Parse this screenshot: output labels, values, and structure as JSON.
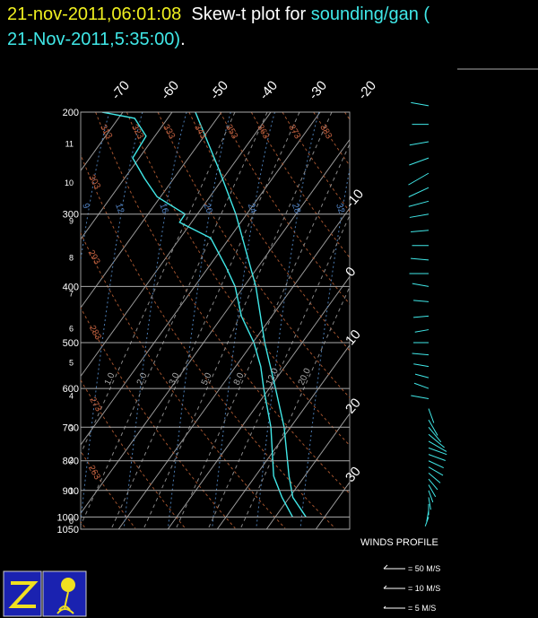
{
  "header": {
    "time": "21-nov-2011,06:01:08",
    "plot": "Skew-t plot for",
    "source": "sounding/gan (",
    "line2": "21-Nov-2011,5:35:00)",
    "period": "."
  },
  "chart_data": {
    "type": "skewt",
    "ylim": [
      200,
      1050
    ],
    "log_y": true,
    "yticks": [
      200,
      300,
      400,
      500,
      600,
      700,
      800,
      900,
      1000,
      1050
    ],
    "height_ticks": [
      0,
      1,
      2,
      3,
      4,
      5,
      6,
      7,
      8,
      9,
      10,
      11
    ],
    "isotherm_labels_top": [
      -70,
      -60,
      -50,
      -40,
      -30,
      -20
    ],
    "isotherm_labels_right": [
      -10,
      0,
      10,
      20,
      30
    ],
    "dry_adiabats": [
      253,
      263,
      273,
      283,
      293,
      303,
      313,
      323,
      333,
      343,
      353,
      363,
      373,
      383,
      393
    ],
    "moist_labels": [
      9,
      12,
      16,
      20,
      24,
      28,
      32
    ],
    "mixing_ratio_labels": [
      "1.0",
      "2.0",
      "3.0",
      "5.0",
      "8.0",
      "12.0",
      "20.0"
    ],
    "series": [
      {
        "color": "#40e8e8",
        "pressure": [
          1000,
          925,
          850,
          700,
          600,
          500,
          400,
          300,
          250,
          200
        ],
        "values": [
          26.2,
          20.7,
          16.8,
          8.7,
          1.3,
          -7.6,
          -17.6,
          -32.2,
          -42.4,
          -55.3
        ]
      },
      {
        "color": "#40e8e8",
        "pressure": [
          1000,
          925,
          850,
          700,
          600,
          550,
          500,
          450,
          400,
          370,
          330,
          310,
          300,
          280,
          260,
          240,
          220,
          205,
          200
        ],
        "values": [
          23.5,
          18.5,
          13.7,
          6,
          -1.1,
          -4.9,
          -9.8,
          -16.2,
          -21.8,
          -26.5,
          -33.8,
          -42.4,
          -42.5,
          -50.7,
          -56,
          -61.3,
          -61.8,
          -66.7,
          -74.2
        ]
      }
    ],
    "winds": {
      "color": "#40e8e8",
      "pressure": [
        195,
        210,
        225,
        240,
        255,
        270,
        285,
        300,
        320,
        340,
        360,
        380,
        400,
        425,
        450,
        475,
        500,
        525,
        550,
        575,
        600,
        625,
        650,
        680,
        700,
        720,
        740,
        760,
        780,
        800,
        820,
        840,
        860,
        880,
        900,
        925,
        950,
        975,
        1000
      ],
      "speed": [
        8,
        7,
        9,
        10,
        12,
        11,
        10,
        9,
        8,
        7,
        8,
        9,
        7,
        6,
        6,
        5,
        6,
        7,
        6,
        5,
        6,
        8,
        6,
        8,
        9,
        10,
        10,
        9,
        8,
        7,
        7,
        6,
        5,
        5,
        4,
        4,
        3,
        3,
        2
      ],
      "direction": [
        80,
        90,
        100,
        110,
        120,
        115,
        105,
        100,
        95,
        90,
        85,
        90,
        80,
        85,
        95,
        100,
        90,
        85,
        80,
        75,
        70,
        80,
        200,
        210,
        220,
        230,
        240,
        250,
        250,
        245,
        240,
        230,
        220,
        210,
        200,
        190,
        180,
        170,
        160
      ]
    },
    "wind_title": "WINDS PROFILE",
    "wind_legend": [
      "= 50 M/S",
      "= 10 M/S",
      "= 5 M/S"
    ]
  }
}
